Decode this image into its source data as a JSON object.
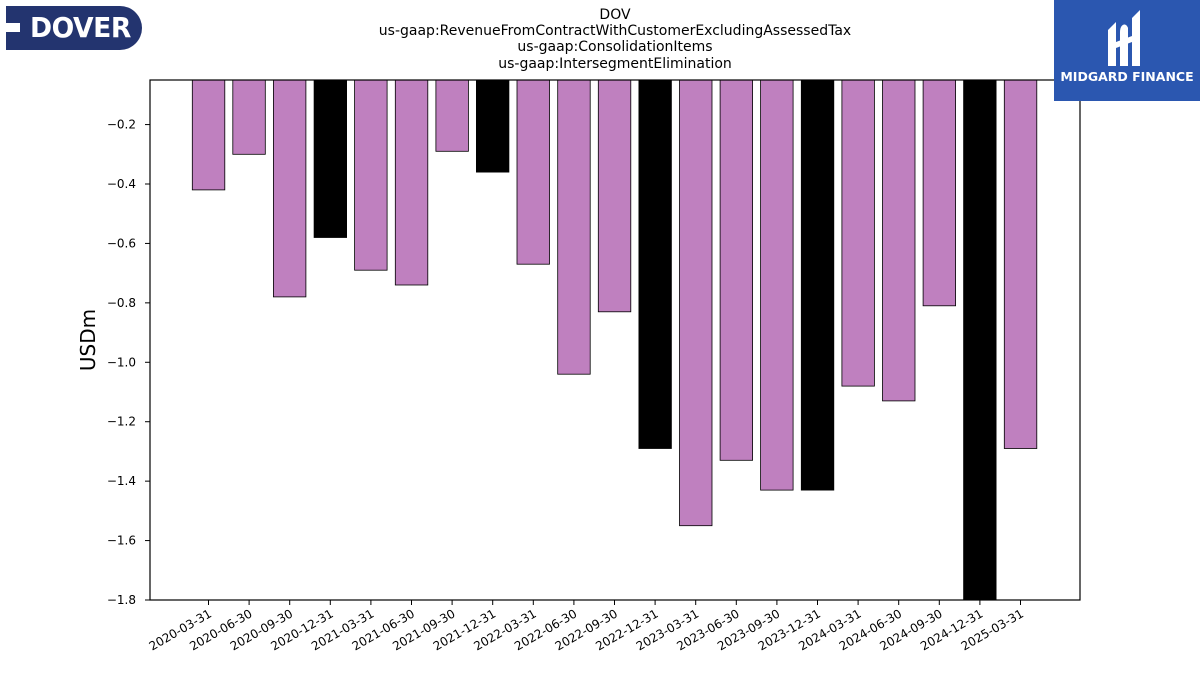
{
  "logos": {
    "left": {
      "text": "DOVER",
      "color": "#23346f"
    },
    "right": {
      "text": "MIDGARD FINANCE",
      "color": "#2b57b0"
    }
  },
  "title_lines": [
    "DOV",
    "us-gaap:RevenueFromContractWithCustomerExcludingAssessedTax",
    "us-gaap:ConsolidationItems",
    "us-gaap:IntersegmentElimination"
  ],
  "colors": {
    "normal": "#bf80bf",
    "q4": "#000000"
  },
  "chart_data": {
    "type": "bar",
    "title": "DOV us-gaap:RevenueFromContractWithCustomerExcludingAssessedTax us-gaap:ConsolidationItems us-gaap:IntersegmentElimination",
    "xlabel": "",
    "ylabel": "USDm",
    "ylim": [
      -1.8,
      -0.05
    ],
    "yticks": [
      "−0.2",
      "−0.4",
      "−0.6",
      "−0.8",
      "−1.0",
      "−1.2",
      "−1.4",
      "−1.6",
      "−1.8"
    ],
    "ytick_values": [
      -0.2,
      -0.4,
      -0.6,
      -0.8,
      -1.0,
      -1.2,
      -1.4,
      -1.6,
      -1.8
    ],
    "categories": [
      "2020-03-31",
      "2020-06-30",
      "2020-09-30",
      "2020-12-31",
      "2021-03-31",
      "2021-06-30",
      "2021-09-30",
      "2021-12-31",
      "2022-03-31",
      "2022-06-30",
      "2022-09-30",
      "2022-12-31",
      "2023-03-31",
      "2023-06-30",
      "2023-09-30",
      "2023-12-31",
      "2024-03-31",
      "2024-06-30",
      "2024-09-30",
      "2024-12-31",
      "2025-03-31"
    ],
    "values": [
      -0.42,
      -0.3,
      -0.78,
      -0.58,
      -0.69,
      -0.74,
      -0.29,
      -0.36,
      -0.67,
      -1.04,
      -0.83,
      -1.29,
      -1.55,
      -1.33,
      -1.43,
      -1.43,
      -1.08,
      -1.13,
      -0.81,
      -1.8,
      -1.29
    ],
    "grid": false,
    "legend": "none"
  }
}
